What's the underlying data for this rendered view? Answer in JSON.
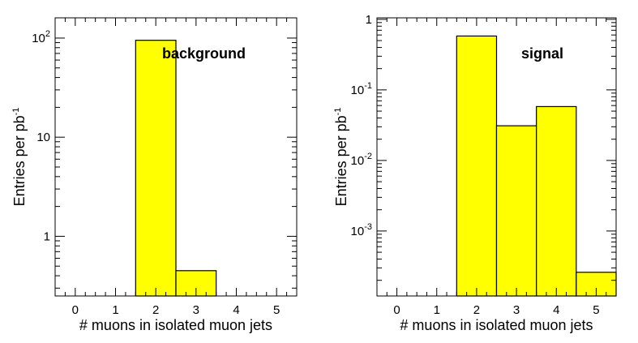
{
  "chart_data": [
    {
      "type": "bar",
      "bar_style": "histogram",
      "label": "background",
      "xlabel": "# muons in isolated muon jets",
      "ylabel": "Entries per pb",
      "ylabel_sup": "-1",
      "y_scale": "log",
      "xlim": [
        -0.5,
        5.5
      ],
      "ylim": [
        0.25,
        160
      ],
      "x_ticks": [
        "0",
        "1",
        "2",
        "3",
        "4",
        "5"
      ],
      "y_ticks": [
        {
          "value": 1,
          "label": "1",
          "sup": ""
        },
        {
          "value": 10,
          "label": "10",
          "sup": ""
        },
        {
          "value": 100,
          "label": "10",
          "sup": "2"
        }
      ],
      "bins": [
        {
          "low": 1.5,
          "high": 2.5,
          "value": 95
        },
        {
          "low": 2.5,
          "high": 3.5,
          "value": 0.45
        }
      ],
      "fill_color": "#ffff00",
      "line_color": "#000000"
    },
    {
      "type": "bar",
      "bar_style": "histogram",
      "label": "signal",
      "xlabel": "# muons in isolated muon jets",
      "ylabel": "Entries per pb",
      "ylabel_sup": "-1",
      "y_scale": "log",
      "xlim": [
        -0.5,
        5.5
      ],
      "ylim": [
        0.00012,
        1.05
      ],
      "x_ticks": [
        "0",
        "1",
        "2",
        "3",
        "4",
        "5"
      ],
      "y_ticks": [
        {
          "value": 0.001,
          "label": "10",
          "sup": "-3"
        },
        {
          "value": 0.01,
          "label": "10",
          "sup": "-2"
        },
        {
          "value": 0.1,
          "label": "10",
          "sup": "-1"
        },
        {
          "value": 1,
          "label": "1",
          "sup": ""
        }
      ],
      "bins": [
        {
          "low": 1.5,
          "high": 2.5,
          "value": 0.58
        },
        {
          "low": 2.5,
          "high": 3.5,
          "value": 0.031
        },
        {
          "low": 3.5,
          "high": 4.5,
          "value": 0.058
        },
        {
          "low": 4.5,
          "high": 5.5,
          "value": 0.00026
        }
      ],
      "fill_color": "#ffff00",
      "line_color": "#000000"
    }
  ]
}
